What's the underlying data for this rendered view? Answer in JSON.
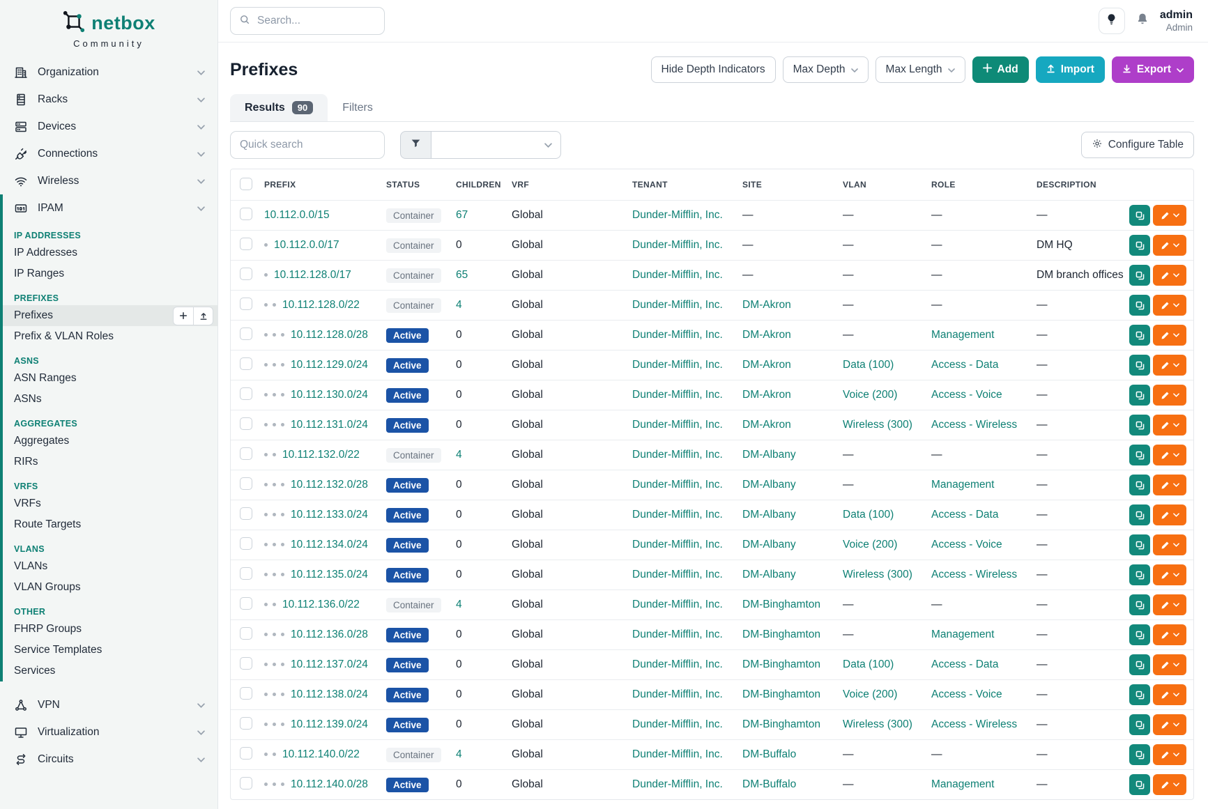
{
  "sidebar": {
    "logo_text": "netbox",
    "logo_subtext": "Community",
    "top_items": [
      {
        "label": "Organization",
        "icon": "building-icon"
      },
      {
        "label": "Racks",
        "icon": "rack-icon"
      },
      {
        "label": "Devices",
        "icon": "server-icon"
      },
      {
        "label": "Connections",
        "icon": "plug-icon"
      },
      {
        "label": "Wireless",
        "icon": "wifi-icon"
      }
    ],
    "ipam_item": {
      "label": "IPAM",
      "icon": "ipam-icon"
    },
    "ipam_sections": [
      {
        "header": "IP ADDRESSES",
        "items": [
          {
            "label": "IP Addresses"
          },
          {
            "label": "IP Ranges"
          }
        ]
      },
      {
        "header": "PREFIXES",
        "items": [
          {
            "label": "Prefixes",
            "active": true,
            "actions": [
              "plus",
              "upload"
            ]
          },
          {
            "label": "Prefix & VLAN Roles"
          }
        ]
      },
      {
        "header": "ASNS",
        "items": [
          {
            "label": "ASN Ranges"
          },
          {
            "label": "ASNs"
          }
        ]
      },
      {
        "header": "AGGREGATES",
        "items": [
          {
            "label": "Aggregates"
          },
          {
            "label": "RIRs"
          }
        ]
      },
      {
        "header": "VRFS",
        "items": [
          {
            "label": "VRFs"
          },
          {
            "label": "Route Targets"
          }
        ]
      },
      {
        "header": "VLANS",
        "items": [
          {
            "label": "VLANs"
          },
          {
            "label": "VLAN Groups"
          }
        ]
      },
      {
        "header": "OTHER",
        "items": [
          {
            "label": "FHRP Groups"
          },
          {
            "label": "Service Templates"
          },
          {
            "label": "Services"
          }
        ]
      }
    ],
    "bottom_items": [
      {
        "label": "VPN",
        "icon": "vpn-icon"
      },
      {
        "label": "Virtualization",
        "icon": "monitor-icon"
      },
      {
        "label": "Circuits",
        "icon": "circuit-icon"
      }
    ]
  },
  "topbar": {
    "search_placeholder": "Search...",
    "user_name": "admin",
    "user_role": "Admin"
  },
  "page": {
    "title": "Prefixes",
    "buttons": {
      "hide_depth": "Hide Depth Indicators",
      "max_depth": "Max Depth",
      "max_length": "Max Length",
      "add": "Add",
      "import": "Import",
      "export": "Export"
    },
    "tabs": [
      {
        "label": "Results",
        "badge": "90",
        "active": true
      },
      {
        "label": "Filters"
      }
    ],
    "quick_search_placeholder": "Quick search",
    "configure_table": "Configure Table"
  },
  "table": {
    "columns": [
      "PREFIX",
      "STATUS",
      "CHILDREN",
      "VRF",
      "TENANT",
      "SITE",
      "VLAN",
      "ROLE",
      "DESCRIPTION"
    ],
    "rows": [
      {
        "depth": 0,
        "prefix": "10.112.0.0/15",
        "status": "Container",
        "children": "67",
        "vrf": "Global",
        "tenant": "Dunder-Mifflin, Inc.",
        "site": "—",
        "vlan": "—",
        "role": "—",
        "description": "—"
      },
      {
        "depth": 1,
        "prefix": "10.112.0.0/17",
        "status": "Container",
        "children": "0",
        "vrf": "Global",
        "tenant": "Dunder-Mifflin, Inc.",
        "site": "—",
        "vlan": "—",
        "role": "—",
        "description": "DM HQ"
      },
      {
        "depth": 1,
        "prefix": "10.112.128.0/17",
        "status": "Container",
        "children": "65",
        "vrf": "Global",
        "tenant": "Dunder-Mifflin, Inc.",
        "site": "—",
        "vlan": "—",
        "role": "—",
        "description": "DM branch offices"
      },
      {
        "depth": 2,
        "prefix": "10.112.128.0/22",
        "status": "Container",
        "children": "4",
        "vrf": "Global",
        "tenant": "Dunder-Mifflin, Inc.",
        "site": "DM-Akron",
        "vlan": "—",
        "role": "—",
        "description": "—"
      },
      {
        "depth": 3,
        "prefix": "10.112.128.0/28",
        "status": "Active",
        "children": "0",
        "vrf": "Global",
        "tenant": "Dunder-Mifflin, Inc.",
        "site": "DM-Akron",
        "vlan": "—",
        "role": "Management",
        "description": "—"
      },
      {
        "depth": 3,
        "prefix": "10.112.129.0/24",
        "status": "Active",
        "children": "0",
        "vrf": "Global",
        "tenant": "Dunder-Mifflin, Inc.",
        "site": "DM-Akron",
        "vlan": "Data (100)",
        "role": "Access - Data",
        "description": "—"
      },
      {
        "depth": 3,
        "prefix": "10.112.130.0/24",
        "status": "Active",
        "children": "0",
        "vrf": "Global",
        "tenant": "Dunder-Mifflin, Inc.",
        "site": "DM-Akron",
        "vlan": "Voice (200)",
        "role": "Access - Voice",
        "description": "—"
      },
      {
        "depth": 3,
        "prefix": "10.112.131.0/24",
        "status": "Active",
        "children": "0",
        "vrf": "Global",
        "tenant": "Dunder-Mifflin, Inc.",
        "site": "DM-Akron",
        "vlan": "Wireless (300)",
        "role": "Access - Wireless",
        "description": "—"
      },
      {
        "depth": 2,
        "prefix": "10.112.132.0/22",
        "status": "Container",
        "children": "4",
        "vrf": "Global",
        "tenant": "Dunder-Mifflin, Inc.",
        "site": "DM-Albany",
        "vlan": "—",
        "role": "—",
        "description": "—"
      },
      {
        "depth": 3,
        "prefix": "10.112.132.0/28",
        "status": "Active",
        "children": "0",
        "vrf": "Global",
        "tenant": "Dunder-Mifflin, Inc.",
        "site": "DM-Albany",
        "vlan": "—",
        "role": "Management",
        "description": "—"
      },
      {
        "depth": 3,
        "prefix": "10.112.133.0/24",
        "status": "Active",
        "children": "0",
        "vrf": "Global",
        "tenant": "Dunder-Mifflin, Inc.",
        "site": "DM-Albany",
        "vlan": "Data (100)",
        "role": "Access - Data",
        "description": "—"
      },
      {
        "depth": 3,
        "prefix": "10.112.134.0/24",
        "status": "Active",
        "children": "0",
        "vrf": "Global",
        "tenant": "Dunder-Mifflin, Inc.",
        "site": "DM-Albany",
        "vlan": "Voice (200)",
        "role": "Access - Voice",
        "description": "—"
      },
      {
        "depth": 3,
        "prefix": "10.112.135.0/24",
        "status": "Active",
        "children": "0",
        "vrf": "Global",
        "tenant": "Dunder-Mifflin, Inc.",
        "site": "DM-Albany",
        "vlan": "Wireless (300)",
        "role": "Access - Wireless",
        "description": "—"
      },
      {
        "depth": 2,
        "prefix": "10.112.136.0/22",
        "status": "Container",
        "children": "4",
        "vrf": "Global",
        "tenant": "Dunder-Mifflin, Inc.",
        "site": "DM-Binghamton",
        "vlan": "—",
        "role": "—",
        "description": "—"
      },
      {
        "depth": 3,
        "prefix": "10.112.136.0/28",
        "status": "Active",
        "children": "0",
        "vrf": "Global",
        "tenant": "Dunder-Mifflin, Inc.",
        "site": "DM-Binghamton",
        "vlan": "—",
        "role": "Management",
        "description": "—"
      },
      {
        "depth": 3,
        "prefix": "10.112.137.0/24",
        "status": "Active",
        "children": "0",
        "vrf": "Global",
        "tenant": "Dunder-Mifflin, Inc.",
        "site": "DM-Binghamton",
        "vlan": "Data (100)",
        "role": "Access - Data",
        "description": "—"
      },
      {
        "depth": 3,
        "prefix": "10.112.138.0/24",
        "status": "Active",
        "children": "0",
        "vrf": "Global",
        "tenant": "Dunder-Mifflin, Inc.",
        "site": "DM-Binghamton",
        "vlan": "Voice (200)",
        "role": "Access - Voice",
        "description": "—"
      },
      {
        "depth": 3,
        "prefix": "10.112.139.0/24",
        "status": "Active",
        "children": "0",
        "vrf": "Global",
        "tenant": "Dunder-Mifflin, Inc.",
        "site": "DM-Binghamton",
        "vlan": "Wireless (300)",
        "role": "Access - Wireless",
        "description": "—"
      },
      {
        "depth": 2,
        "prefix": "10.112.140.0/22",
        "status": "Container",
        "children": "4",
        "vrf": "Global",
        "tenant": "Dunder-Mifflin, Inc.",
        "site": "DM-Buffalo",
        "vlan": "—",
        "role": "—",
        "description": "—"
      },
      {
        "depth": 3,
        "prefix": "10.112.140.0/28",
        "status": "Active",
        "children": "0",
        "vrf": "Global",
        "tenant": "Dunder-Mifflin, Inc.",
        "site": "DM-Buffalo",
        "vlan": "—",
        "role": "Management",
        "description": "—"
      }
    ]
  },
  "colors": {
    "accent": "#0e8074",
    "link": "#0e8074",
    "logo-teal": "#0e8074",
    "add-btn": "#0e8a77",
    "import-btn": "#16a8c0",
    "export-btn": "#ae3ec9",
    "edit-btn": "#f76f12",
    "copy-btn": "#12897b",
    "status-active": "#1b53a6",
    "status-container-bg": "#f1f3f5"
  }
}
